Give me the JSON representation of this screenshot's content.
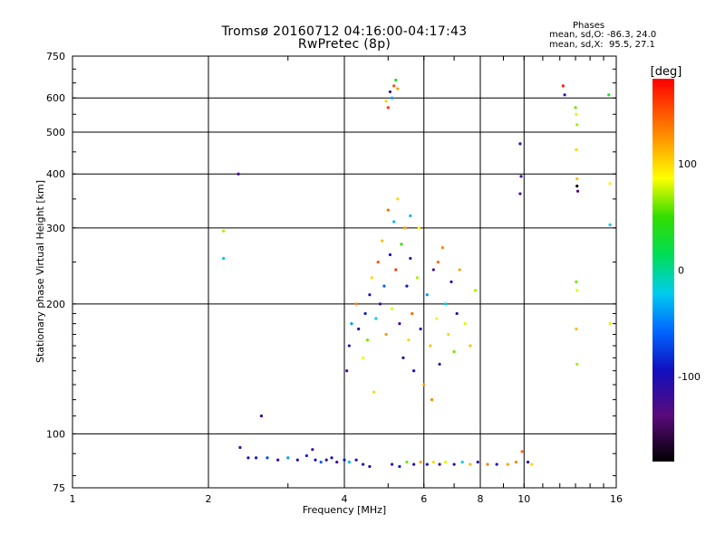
{
  "header": {
    "title_line1": "Tromsø 20160712 04:16:00-04:17:43",
    "title_line2": "RwPretec (8p)",
    "phases_label": "Phases",
    "phases_o": "mean, sd,O: -86.3, 24.0",
    "phases_x": "mean, sd,X:  95.5, 27.1"
  },
  "chart_data": {
    "type": "scatter",
    "title": "Tromsø 20160712 04:16:00-04:17:43",
    "subtitle": "RwPretec (8p)",
    "xlabel": "Frequency [MHz]",
    "ylabel": "Stationary phase Virtual Height [km]",
    "xscale": "log",
    "yscale": "log",
    "xlim": [
      1,
      16
    ],
    "ylim": [
      75,
      750
    ],
    "xticks": [
      1,
      2,
      4,
      6,
      8,
      10,
      16
    ],
    "yticks": [
      75,
      100,
      200,
      300,
      400,
      500,
      600,
      750
    ],
    "grid": true,
    "colorbar": {
      "label": "[deg]",
      "range": [
        -180,
        180
      ],
      "ticks": [
        100,
        0,
        -100
      ],
      "colormap": "rainbow (black-purple-blue-cyan-green-yellow-orange-red)"
    },
    "points": [
      {
        "x": 2.16,
        "y": 295,
        "c": 70
      },
      {
        "x": 2.16,
        "y": 255,
        "c": -25
      },
      {
        "x": 2.33,
        "y": 400,
        "c": -120
      },
      {
        "x": 2.62,
        "y": 110,
        "c": -120
      },
      {
        "x": 2.35,
        "y": 93,
        "c": -120
      },
      {
        "x": 2.45,
        "y": 88,
        "c": -110
      },
      {
        "x": 2.55,
        "y": 88,
        "c": -100
      },
      {
        "x": 2.7,
        "y": 88,
        "c": -70
      },
      {
        "x": 2.85,
        "y": 87,
        "c": -110
      },
      {
        "x": 3.0,
        "y": 88,
        "c": -40
      },
      {
        "x": 3.15,
        "y": 87,
        "c": -115
      },
      {
        "x": 3.3,
        "y": 89,
        "c": -90
      },
      {
        "x": 3.4,
        "y": 92,
        "c": -120
      },
      {
        "x": 3.45,
        "y": 87,
        "c": -100
      },
      {
        "x": 3.55,
        "y": 86,
        "c": -60
      },
      {
        "x": 3.65,
        "y": 87,
        "c": -115
      },
      {
        "x": 3.75,
        "y": 88,
        "c": -105
      },
      {
        "x": 3.85,
        "y": 86,
        "c": -120
      },
      {
        "x": 4.0,
        "y": 87,
        "c": -95
      },
      {
        "x": 4.1,
        "y": 86,
        "c": -30
      },
      {
        "x": 4.25,
        "y": 87,
        "c": -110
      },
      {
        "x": 4.4,
        "y": 85,
        "c": -115
      },
      {
        "x": 4.55,
        "y": 84,
        "c": -100
      },
      {
        "x": 5.1,
        "y": 85,
        "c": -110
      },
      {
        "x": 5.3,
        "y": 84,
        "c": -90
      },
      {
        "x": 5.5,
        "y": 86,
        "c": 60
      },
      {
        "x": 5.7,
        "y": 85,
        "c": -110
      },
      {
        "x": 5.9,
        "y": 86,
        "c": 120
      },
      {
        "x": 6.1,
        "y": 85,
        "c": -100
      },
      {
        "x": 6.3,
        "y": 86,
        "c": 100
      },
      {
        "x": 6.5,
        "y": 85,
        "c": -120
      },
      {
        "x": 6.7,
        "y": 86,
        "c": 80
      },
      {
        "x": 7.0,
        "y": 85,
        "c": -110
      },
      {
        "x": 7.3,
        "y": 86,
        "c": -20
      },
      {
        "x": 7.6,
        "y": 85,
        "c": 110
      },
      {
        "x": 7.9,
        "y": 86,
        "c": -110
      },
      {
        "x": 8.3,
        "y": 85,
        "c": 130
      },
      {
        "x": 8.7,
        "y": 85,
        "c": -105
      },
      {
        "x": 9.2,
        "y": 85,
        "c": 120
      },
      {
        "x": 9.6,
        "y": 86,
        "c": 130
      },
      {
        "x": 9.9,
        "y": 91,
        "c": 140
      },
      {
        "x": 10.2,
        "y": 86,
        "c": -110
      },
      {
        "x": 10.4,
        "y": 85,
        "c": 100
      },
      {
        "x": 4.95,
        "y": 590,
        "c": 100
      },
      {
        "x": 5.05,
        "y": 620,
        "c": -120
      },
      {
        "x": 5.15,
        "y": 640,
        "c": 150
      },
      {
        "x": 5.2,
        "y": 660,
        "c": 30
      },
      {
        "x": 5.25,
        "y": 630,
        "c": 120
      },
      {
        "x": 5.0,
        "y": 570,
        "c": 160
      },
      {
        "x": 5.1,
        "y": 600,
        "c": -40
      },
      {
        "x": 9.8,
        "y": 470,
        "c": -110
      },
      {
        "x": 9.85,
        "y": 395,
        "c": -120
      },
      {
        "x": 9.8,
        "y": 360,
        "c": -115
      },
      {
        "x": 12.2,
        "y": 640,
        "c": 170
      },
      {
        "x": 12.3,
        "y": 610,
        "c": -110
      },
      {
        "x": 13.0,
        "y": 570,
        "c": 60
      },
      {
        "x": 13.05,
        "y": 550,
        "c": 80
      },
      {
        "x": 13.1,
        "y": 520,
        "c": 70
      },
      {
        "x": 13.05,
        "y": 455,
        "c": 100
      },
      {
        "x": 13.1,
        "y": 390,
        "c": 110
      },
      {
        "x": 13.1,
        "y": 375,
        "c": -180
      },
      {
        "x": 13.15,
        "y": 365,
        "c": -140
      },
      {
        "x": 13.05,
        "y": 225,
        "c": 60
      },
      {
        "x": 13.1,
        "y": 215,
        "c": 80
      },
      {
        "x": 13.05,
        "y": 175,
        "c": 110
      },
      {
        "x": 13.1,
        "y": 145,
        "c": 70
      },
      {
        "x": 15.4,
        "y": 610,
        "c": 30
      },
      {
        "x": 15.5,
        "y": 380,
        "c": 90
      },
      {
        "x": 15.5,
        "y": 305,
        "c": -20
      },
      {
        "x": 15.5,
        "y": 180,
        "c": 80
      },
      {
        "x": 4.05,
        "y": 140,
        "c": -120
      },
      {
        "x": 4.1,
        "y": 160,
        "c": -100
      },
      {
        "x": 4.15,
        "y": 180,
        "c": -40
      },
      {
        "x": 4.25,
        "y": 200,
        "c": 130
      },
      {
        "x": 4.3,
        "y": 175,
        "c": -110
      },
      {
        "x": 4.4,
        "y": 150,
        "c": 90
      },
      {
        "x": 4.45,
        "y": 190,
        "c": -90
      },
      {
        "x": 4.5,
        "y": 165,
        "c": 60
      },
      {
        "x": 4.55,
        "y": 210,
        "c": -110
      },
      {
        "x": 4.6,
        "y": 230,
        "c": 100
      },
      {
        "x": 4.7,
        "y": 185,
        "c": -20
      },
      {
        "x": 4.75,
        "y": 250,
        "c": 150
      },
      {
        "x": 4.8,
        "y": 200,
        "c": -115
      },
      {
        "x": 4.85,
        "y": 280,
        "c": 110
      },
      {
        "x": 4.9,
        "y": 220,
        "c": -60
      },
      {
        "x": 4.95,
        "y": 170,
        "c": 120
      },
      {
        "x": 5.0,
        "y": 330,
        "c": 140
      },
      {
        "x": 5.05,
        "y": 260,
        "c": -100
      },
      {
        "x": 5.1,
        "y": 195,
        "c": 80
      },
      {
        "x": 5.15,
        "y": 310,
        "c": -30
      },
      {
        "x": 5.2,
        "y": 240,
        "c": 160
      },
      {
        "x": 5.25,
        "y": 350,
        "c": 100
      },
      {
        "x": 5.3,
        "y": 180,
        "c": -120
      },
      {
        "x": 5.35,
        "y": 275,
        "c": 50
      },
      {
        "x": 5.4,
        "y": 150,
        "c": -110
      },
      {
        "x": 5.45,
        "y": 300,
        "c": 120
      },
      {
        "x": 5.5,
        "y": 220,
        "c": -90
      },
      {
        "x": 5.55,
        "y": 165,
        "c": 100
      },
      {
        "x": 5.6,
        "y": 255,
        "c": -115
      },
      {
        "x": 5.65,
        "y": 190,
        "c": 140
      },
      {
        "x": 5.7,
        "y": 140,
        "c": -100
      },
      {
        "x": 5.8,
        "y": 230,
        "c": 70
      },
      {
        "x": 5.9,
        "y": 175,
        "c": -110
      },
      {
        "x": 6.0,
        "y": 130,
        "c": 120
      },
      {
        "x": 6.1,
        "y": 210,
        "c": -40
      },
      {
        "x": 6.2,
        "y": 160,
        "c": 110
      },
      {
        "x": 6.3,
        "y": 240,
        "c": -120
      },
      {
        "x": 6.4,
        "y": 185,
        "c": 90
      },
      {
        "x": 6.5,
        "y": 145,
        "c": -110
      },
      {
        "x": 6.6,
        "y": 270,
        "c": 130
      },
      {
        "x": 6.7,
        "y": 200,
        "c": -20
      },
      {
        "x": 6.8,
        "y": 170,
        "c": 100
      },
      {
        "x": 6.9,
        "y": 225,
        "c": -100
      },
      {
        "x": 7.0,
        "y": 155,
        "c": 60
      },
      {
        "x": 7.1,
        "y": 190,
        "c": -115
      },
      {
        "x": 7.2,
        "y": 240,
        "c": 120
      },
      {
        "x": 7.4,
        "y": 180,
        "c": 80
      },
      {
        "x": 7.6,
        "y": 160,
        "c": 110
      },
      {
        "x": 7.8,
        "y": 215,
        "c": 70
      },
      {
        "x": 6.25,
        "y": 120,
        "c": 130
      },
      {
        "x": 5.85,
        "y": 300,
        "c": 90
      },
      {
        "x": 4.65,
        "y": 125,
        "c": 100
      },
      {
        "x": 5.6,
        "y": 320,
        "c": -30
      },
      {
        "x": 6.45,
        "y": 250,
        "c": 140
      }
    ]
  }
}
